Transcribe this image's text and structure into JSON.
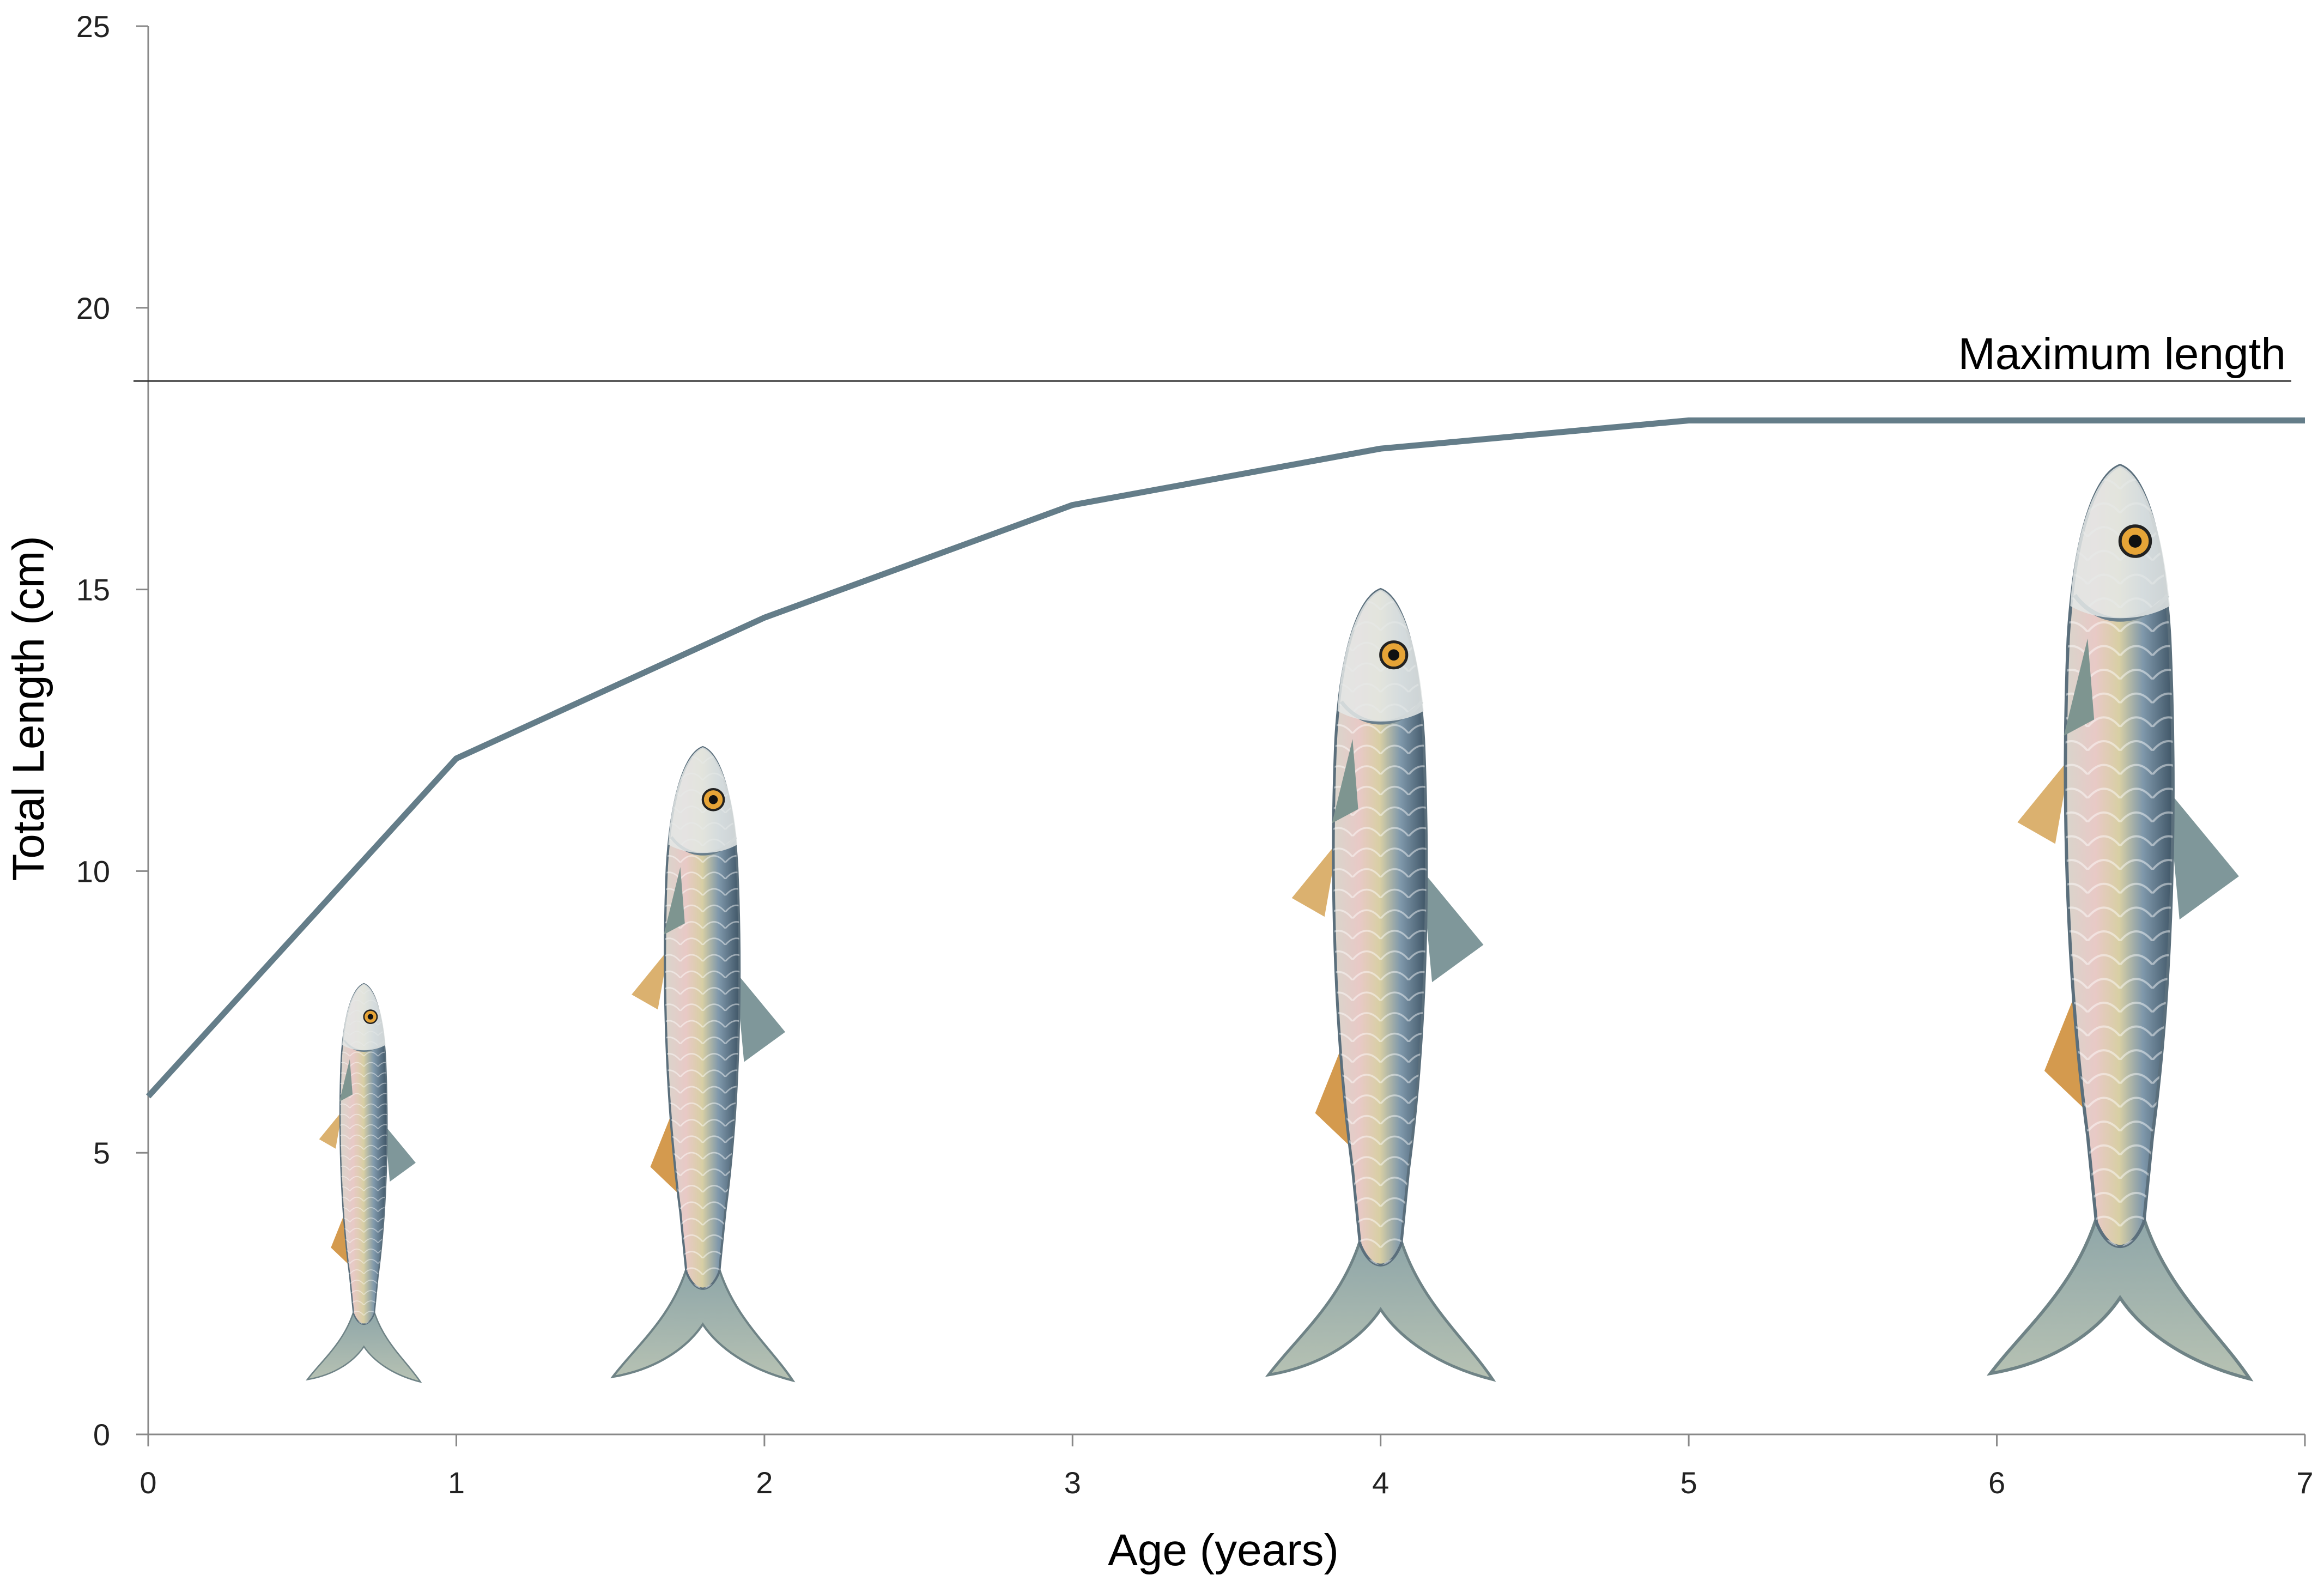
{
  "chart_data": {
    "type": "line",
    "title": "",
    "xlabel": "Age (years)",
    "ylabel": "Total Length (cm)",
    "xlim": [
      0,
      7
    ],
    "ylim": [
      0,
      25
    ],
    "xticks": [
      "0",
      "1",
      "2",
      "3",
      "4",
      "5",
      "6",
      "7"
    ],
    "yticks": [
      "0",
      "5",
      "10",
      "15",
      "20",
      "25"
    ],
    "grid": false,
    "series": [
      {
        "x": [
          0,
          1,
          2,
          3,
          4,
          5,
          6,
          7
        ],
        "values": [
          6.0,
          12.0,
          14.5,
          16.5,
          17.5,
          18.0,
          18.0,
          18.0
        ],
        "color": "#647d89"
      }
    ],
    "reference_line": {
      "y": 18.7,
      "label": "Maximum length",
      "color": "#333333"
    },
    "illustrations": [
      {
        "name": "fish-age-0",
        "age": 0.7,
        "length_cm": 8
      },
      {
        "name": "fish-age-1",
        "age": 1.8,
        "length_cm": 12.2
      },
      {
        "name": "fish-age-3",
        "age": 4.0,
        "length_cm": 15
      },
      {
        "name": "fish-age-5",
        "age": 6.4,
        "length_cm": 17.2
      }
    ]
  }
}
